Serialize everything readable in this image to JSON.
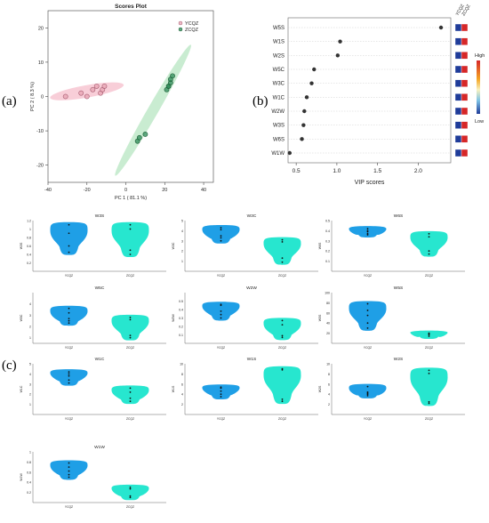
{
  "panel_labels": {
    "a": "(a)",
    "b": "(b)",
    "c": "(c)"
  },
  "colors": {
    "ycqz": "#e8a4b4",
    "ycqz_ellipse": "#f7c6d1",
    "ycqz_edge": "#a45a6e",
    "zcqz": "#2e8b57",
    "zcqz_ellipse": "#bfe9c9",
    "zcqz_edge": "#1e5e38",
    "violin_blue": "#1f9fe6",
    "violin_cyan": "#27e6cf",
    "heat_high": "#d62728",
    "heat_low": "#1f3c99"
  },
  "chart_data": [
    {
      "type": "scatter",
      "title": "Scores Plot",
      "xlabel": "PC 1 ( 81.1 %)",
      "ylabel": "PC 2 ( 8.3 %)",
      "xlim": [
        -40,
        45
      ],
      "ylim": [
        -25,
        25
      ],
      "xticks": [
        -40,
        -20,
        0,
        20,
        40
      ],
      "yticks": [
        -20,
        -10,
        0,
        10,
        20
      ],
      "grid": false,
      "legend_position": "top-right",
      "series": [
        {
          "name": "YCQZ",
          "x": [
            -31,
            -23,
            -20,
            -17,
            -15,
            -13,
            -12,
            -11
          ],
          "y": [
            0,
            1,
            0,
            2,
            3,
            1,
            2,
            3
          ]
        },
        {
          "name": "ZCQZ",
          "x": [
            6,
            7,
            10,
            21,
            22,
            22,
            23,
            23,
            24
          ],
          "y": [
            -13,
            -12,
            -11,
            2,
            3,
            3,
            4,
            5,
            6
          ]
        }
      ]
    },
    {
      "type": "scatter",
      "xlabel": "VIP scores",
      "xlim": [
        0.4,
        2.4
      ],
      "xticks": [
        0.5,
        1.0,
        1.5,
        2.0
      ],
      "categories": [
        "W5S",
        "W1S",
        "W2S",
        "W5C",
        "W3C",
        "W1C",
        "W2W",
        "W3S",
        "W6S",
        "W1W"
      ],
      "values": [
        2.28,
        1.04,
        1.01,
        0.72,
        0.69,
        0.63,
        0.6,
        0.59,
        0.57,
        0.42
      ],
      "heat_columns": [
        "YCQZ",
        "ZCQZ"
      ],
      "heat_legend": {
        "high": "High",
        "low": "Low"
      }
    },
    {
      "type": "violin",
      "panels": [
        {
          "title": "W3S",
          "ylabel": "W3S",
          "groups": [
            "YCQZ",
            "ZCQZ"
          ],
          "ylim": [
            0,
            1.2
          ],
          "yticks": [
            0.2,
            0.4,
            0.6,
            0.8,
            1.0,
            1.2
          ],
          "points": [
            [
              0.9,
              0.6,
              0.45,
              1.1
            ],
            [
              0.5,
              0.4,
              1.1,
              1.0
            ]
          ]
        },
        {
          "title": "W3C",
          "ylabel": "W3C",
          "groups": [
            "YCQZ",
            "ZCQZ"
          ],
          "ylim": [
            0,
            5
          ],
          "yticks": [
            1,
            2,
            3,
            4,
            5
          ],
          "points": [
            [
              3.0,
              3.5,
              4.3,
              3.3,
              4.1
            ],
            [
              0.9,
              1.3,
              2.9,
              3.1
            ]
          ]
        },
        {
          "title": "W6S",
          "ylabel": "W6S",
          "groups": [
            "YCQZ",
            "ZCQZ"
          ],
          "ylim": [
            0,
            0.5
          ],
          "yticks": [
            0.1,
            0.2,
            0.3,
            0.4,
            0.5
          ],
          "points": [
            [
              0.36,
              0.37,
              0.39,
              0.4,
              0.42
            ],
            [
              0.17,
              0.2,
              0.34,
              0.37
            ]
          ]
        },
        {
          "title": "W5C",
          "ylabel": "W5C",
          "groups": [
            "YCQZ",
            "ZCQZ"
          ],
          "ylim": [
            0.5,
            5
          ],
          "yticks": [
            1,
            2,
            3,
            4
          ],
          "points": [
            [
              2.3,
              2.5,
              2.7,
              3.2,
              3.6
            ],
            [
              1.0,
              1.2,
              2.6,
              2.8
            ]
          ]
        },
        {
          "title": "W2W",
          "ylabel": "W2W",
          "groups": [
            "YCQZ",
            "ZCQZ"
          ],
          "ylim": [
            0,
            0.6
          ],
          "yticks": [
            0.1,
            0.2,
            0.3,
            0.4,
            0.5
          ],
          "points": [
            [
              0.3,
              0.34,
              0.38,
              0.45,
              0.46
            ],
            [
              0.07,
              0.09,
              0.22,
              0.27
            ]
          ]
        },
        {
          "title": "W5S",
          "ylabel": "W5S",
          "groups": [
            "YCQZ",
            "ZCQZ"
          ],
          "ylim": [
            0,
            100
          ],
          "yticks": [
            20,
            40,
            60,
            80,
            100
          ],
          "points": [
            [
              30,
              40,
              55,
              65,
              78
            ],
            [
              14,
              17,
              19,
              20
            ]
          ]
        },
        {
          "title": "W1C",
          "ylabel": "W1C",
          "groups": [
            "YCQZ",
            "ZCQZ"
          ],
          "ylim": [
            0,
            5
          ],
          "yticks": [
            1,
            2,
            3,
            4,
            5
          ],
          "points": [
            [
              3.1,
              3.4,
              3.8,
              4.0,
              4.2
            ],
            [
              1.3,
              1.6,
              2.2,
              2.6
            ]
          ]
        },
        {
          "title": "W1S",
          "ylabel": "W1S",
          "groups": [
            "YCQZ",
            "ZCQZ"
          ],
          "ylim": [
            0,
            10
          ],
          "yticks": [
            2,
            4,
            6,
            8,
            10
          ],
          "points": [
            [
              3.5,
              4.0,
              4.6,
              5.2,
              5.4
            ],
            [
              2.6,
              3.0,
              8.8,
              9.0
            ]
          ]
        },
        {
          "title": "W2S",
          "ylabel": "W2S",
          "groups": [
            "YCQZ",
            "ZCQZ"
          ],
          "ylim": [
            0,
            10
          ],
          "yticks": [
            2,
            4,
            6,
            8,
            10
          ],
          "points": [
            [
              3.7,
              4.0,
              4.2,
              4.4,
              5.5
            ],
            [
              2.2,
              2.5,
              8.1,
              8.7
            ]
          ]
        },
        {
          "title": "W1W",
          "ylabel": "W1W",
          "groups": [
            "YCQZ",
            "ZCQZ"
          ],
          "ylim": [
            0,
            1.0
          ],
          "yticks": [
            0.2,
            0.4,
            0.6,
            0.8,
            1.0
          ],
          "points": [
            [
              0.5,
              0.55,
              0.62,
              0.7,
              0.78
            ],
            [
              0.1,
              0.13,
              0.27,
              0.3
            ]
          ]
        }
      ]
    }
  ]
}
